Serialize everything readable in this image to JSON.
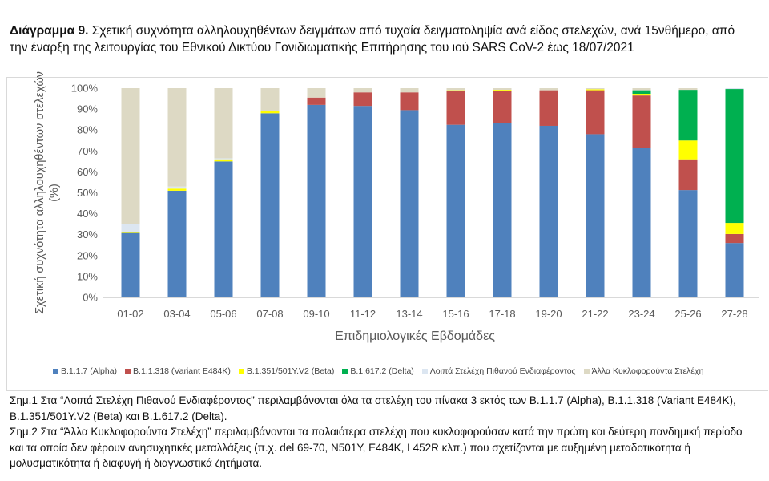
{
  "title": {
    "bold": "Διάγραμμα 9.",
    "text": " Σχετική συχνότητα αλληλουχηθέντων δειγμάτων από τυχαία δειγματοληψία ανά είδος στελεχών, ανά 15νθήμερο, από την έναρξη της λειτουργίας του Εθνικού Δικτύου Γονιδιωματικής Επιτήρησης του ιού SARS CoV-2 έως 18/07/2021"
  },
  "chart_data": {
    "type": "bar",
    "stacked": true,
    "xlabel": "Επιδημιολογικές Εβδομάδες",
    "ylabel": "Σχετική συχνότητα αλληλουχηθέντων στελεχών (%)",
    "ylim": [
      0,
      100
    ],
    "yticks": [
      "0%",
      "10%",
      "20%",
      "30%",
      "40%",
      "50%",
      "60%",
      "70%",
      "80%",
      "90%",
      "100%"
    ],
    "grid": false,
    "legend": "bottom",
    "categories": [
      "01-02",
      "03-04",
      "05-06",
      "07-08",
      "09-10",
      "11-12",
      "13-14",
      "15-16",
      "17-18",
      "19-20",
      "21-22",
      "23-24",
      "25-26",
      "27-28"
    ],
    "series": [
      {
        "name": "B.1.1.7 (Alpha)",
        "color": "#4f81bd",
        "values": [
          30.8,
          51,
          65,
          88,
          92,
          91.5,
          89.5,
          82.5,
          83.5,
          82,
          78,
          71.3,
          51.3,
          26
        ]
      },
      {
        "name": "B.1.1.318 (Variant E484K)",
        "color": "#c0504d",
        "values": [
          0,
          0,
          0,
          0,
          3.5,
          6.5,
          8.5,
          16,
          15,
          17,
          21,
          25.2,
          14.7,
          4.3
        ]
      },
      {
        "name": "B.1.351/501Y.V2 (Beta)",
        "color": "#ffff00",
        "values": [
          0.6,
          1,
          1,
          1,
          0,
          0,
          0,
          0.5,
          0.7,
          0,
          0.5,
          0.8,
          9,
          5.3
        ]
      },
      {
        "name": "B.1.617.2 (Delta)",
        "color": "#00b050",
        "values": [
          0,
          0,
          0,
          0,
          0,
          0,
          0,
          0,
          0,
          0,
          0,
          1.7,
          24.2,
          64
        ]
      },
      {
        "name": "Λοιπά Στελέχη Πιθανού Ενδιαφέροντος",
        "color": "#dce6f1",
        "values": [
          3.6,
          1,
          0.5,
          0,
          0,
          0,
          0,
          0,
          0,
          0,
          0,
          0,
          0,
          0.4
        ]
      },
      {
        "name": "Άλλα Κυκλοφορούντα Στελέχη",
        "color": "#ddd9c4",
        "values": [
          65,
          47,
          33.5,
          11,
          4.5,
          2,
          2,
          1,
          0.8,
          1,
          0.5,
          1,
          0.8,
          0
        ]
      }
    ]
  },
  "notes": [
    "Σημ.1 Στα “Λοιπά Στελέχη Πιθανού Ενδιαφέροντος” περιλαμβάνονται όλα τα στελέχη του πίνακα 3 εκτός των B.1.1.7 (Alpha), B.1.1.318 (Variant E484K), B.1.351/501Y.V2 (Beta) και B.1.617.2 (Delta).",
    "Σημ.2 Στα “Άλλα Κυκλοφορούντα Στελέχη” περιλαμβάνονται τα παλαιότερα στελέχη που κυκλοφορούσαν κατά την πρώτη και δεύτερη πανδημική περίοδο και τα οποία δεν φέρουν ανησυχητικές μεταλλάξεις (π.χ. del 69-70, N501Y, E484K, L452R κλπ.) που σχετίζονται με αυξημένη μεταδοτικότητα ή μολυσματικότητα ή διαφυγή ή διαγνωστικά ζητήματα."
  ]
}
